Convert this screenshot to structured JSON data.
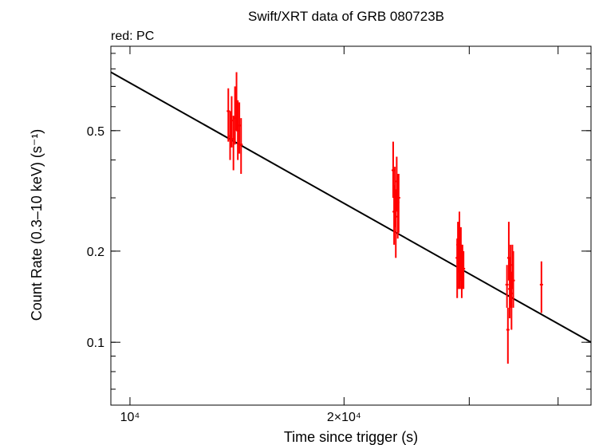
{
  "chart_data": {
    "type": "scatter",
    "title": "Swift/XRT data of GRB 080723B",
    "subtitle": "red: PC",
    "xlabel": "Time since trigger (s)",
    "ylabel": "Count Rate (0.3–10 keV) (s⁻¹)",
    "x_scale": "log",
    "y_scale": "log",
    "xlim": [
      9400,
      44500
    ],
    "ylim": [
      0.062,
      0.95
    ],
    "x_ticks": [
      {
        "value": 10000,
        "label": "10⁴"
      },
      {
        "value": 20000,
        "label": "2×10⁴"
      }
    ],
    "y_ticks": [
      {
        "value": 0.1,
        "label": "0.1"
      },
      {
        "value": 0.2,
        "label": "0.2"
      },
      {
        "value": 0.5,
        "label": "0.5"
      }
    ],
    "grid": false,
    "legend": "none",
    "series_color": "#ff0000",
    "fit_color": "#000000",
    "fit_line": [
      {
        "x": 9400,
        "y": 0.78
      },
      {
        "x": 44500,
        "y": 0.1
      }
    ],
    "series": [
      {
        "points": [
          {
            "x": 13750,
            "y": 0.58,
            "ylow": 0.46,
            "yhigh": 0.69
          },
          {
            "x": 13830,
            "y": 0.48,
            "ylow": 0.4,
            "yhigh": 0.58
          },
          {
            "x": 13900,
            "y": 0.54,
            "ylow": 0.44,
            "yhigh": 0.65
          },
          {
            "x": 13980,
            "y": 0.47,
            "ylow": 0.37,
            "yhigh": 0.56
          },
          {
            "x": 14050,
            "y": 0.55,
            "ylow": 0.45,
            "yhigh": 0.7
          },
          {
            "x": 14120,
            "y": 0.61,
            "ylow": 0.5,
            "yhigh": 0.78
          },
          {
            "x": 14180,
            "y": 0.5,
            "ylow": 0.4,
            "yhigh": 0.63
          },
          {
            "x": 14250,
            "y": 0.52,
            "ylow": 0.42,
            "yhigh": 0.62
          },
          {
            "x": 14330,
            "y": 0.45,
            "ylow": 0.36,
            "yhigh": 0.55
          },
          {
            "x": 23450,
            "y": 0.37,
            "ylow": 0.3,
            "yhigh": 0.46
          },
          {
            "x": 23520,
            "y": 0.27,
            "ylow": 0.21,
            "yhigh": 0.33
          },
          {
            "x": 23580,
            "y": 0.31,
            "ylow": 0.24,
            "yhigh": 0.38
          },
          {
            "x": 23650,
            "y": 0.26,
            "ylow": 0.19,
            "yhigh": 0.32
          },
          {
            "x": 23720,
            "y": 0.34,
            "ylow": 0.27,
            "yhigh": 0.41
          },
          {
            "x": 23800,
            "y": 0.29,
            "ylow": 0.22,
            "yhigh": 0.36
          },
          {
            "x": 23870,
            "y": 0.3,
            "ylow": 0.23,
            "yhigh": 0.36
          },
          {
            "x": 28850,
            "y": 0.19,
            "ylow": 0.14,
            "yhigh": 0.22
          },
          {
            "x": 28920,
            "y": 0.21,
            "ylow": 0.17,
            "yhigh": 0.25
          },
          {
            "x": 28990,
            "y": 0.19,
            "ylow": 0.15,
            "yhigh": 0.24
          },
          {
            "x": 29060,
            "y": 0.22,
            "ylow": 0.18,
            "yhigh": 0.27
          },
          {
            "x": 29130,
            "y": 0.18,
            "ylow": 0.15,
            "yhigh": 0.22
          },
          {
            "x": 29200,
            "y": 0.2,
            "ylow": 0.16,
            "yhigh": 0.24
          },
          {
            "x": 29280,
            "y": 0.18,
            "ylow": 0.14,
            "yhigh": 0.21
          },
          {
            "x": 29350,
            "y": 0.19,
            "ylow": 0.15,
            "yhigh": 0.21
          },
          {
            "x": 29450,
            "y": 0.175,
            "ylow": 0.15,
            "yhigh": 0.2
          },
          {
            "x": 33900,
            "y": 0.155,
            "ylow": 0.13,
            "yhigh": 0.18
          },
          {
            "x": 34000,
            "y": 0.11,
            "ylow": 0.085,
            "yhigh": 0.13
          },
          {
            "x": 34100,
            "y": 0.19,
            "ylow": 0.16,
            "yhigh": 0.25
          },
          {
            "x": 34200,
            "y": 0.15,
            "ylow": 0.12,
            "yhigh": 0.19
          },
          {
            "x": 34300,
            "y": 0.17,
            "ylow": 0.13,
            "yhigh": 0.21
          },
          {
            "x": 34400,
            "y": 0.145,
            "ylow": 0.11,
            "yhigh": 0.17
          },
          {
            "x": 34500,
            "y": 0.18,
            "ylow": 0.15,
            "yhigh": 0.21
          },
          {
            "x": 34600,
            "y": 0.16,
            "ylow": 0.13,
            "yhigh": 0.2
          },
          {
            "x": 37900,
            "y": 0.155,
            "ylow": 0.125,
            "yhigh": 0.185
          }
        ]
      }
    ]
  }
}
